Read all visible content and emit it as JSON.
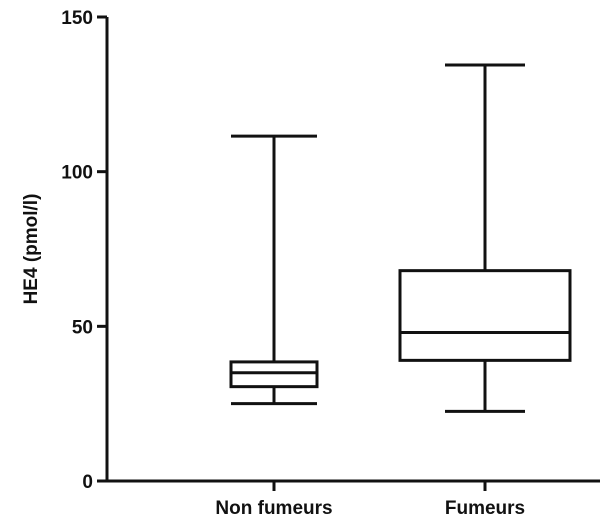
{
  "chart_data": {
    "type": "box",
    "title": "",
    "xlabel": "",
    "ylabel": "HE4 (pmol/l)",
    "ylim": [
      0,
      150
    ],
    "yticks": [
      0,
      50,
      100,
      150
    ],
    "grid": false,
    "categories": [
      "Non fumeurs",
      "Fumeurs"
    ],
    "boxes": [
      {
        "category": "Non fumeurs",
        "min": 25,
        "q1": 30.5,
        "median": 35,
        "q3": 38.5,
        "max": 111.5
      },
      {
        "category": "Fumeurs",
        "min": 22.5,
        "q1": 39,
        "median": 48,
        "q3": 68,
        "max": 134.5
      }
    ],
    "colors": {
      "stroke": "#111111",
      "fill": "#ffffff"
    }
  }
}
